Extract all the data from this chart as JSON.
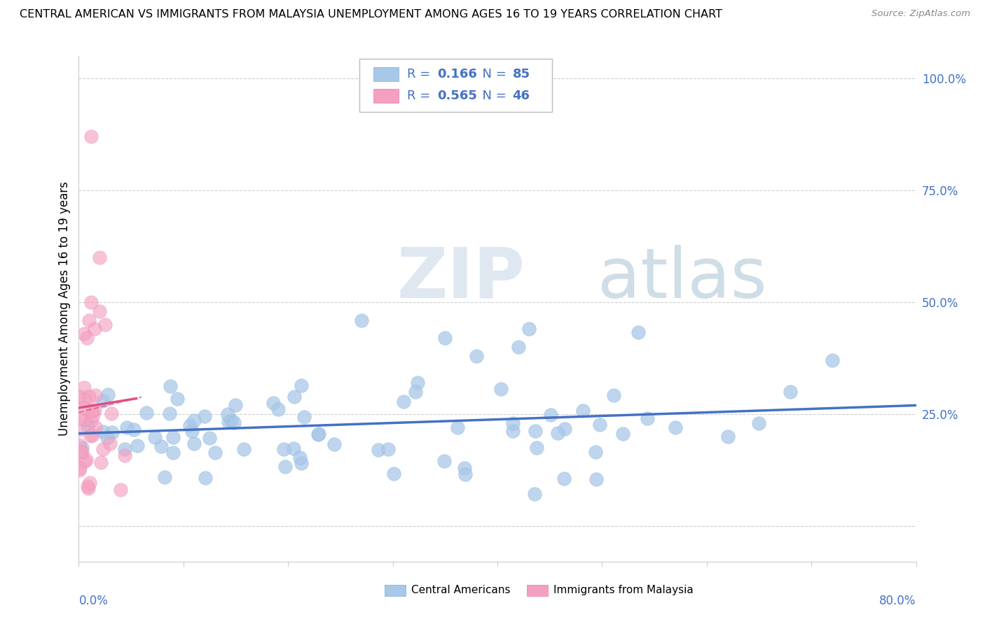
{
  "title": "CENTRAL AMERICAN VS IMMIGRANTS FROM MALAYSIA UNEMPLOYMENT AMONG AGES 16 TO 19 YEARS CORRELATION CHART",
  "source": "Source: ZipAtlas.com",
  "ylabel": "Unemployment Among Ages 16 to 19 years",
  "xmin": 0.0,
  "xmax": 0.8,
  "ymin": -0.08,
  "ymax": 1.05,
  "ytick_values": [
    0.0,
    0.25,
    0.5,
    0.75,
    1.0
  ],
  "ytick_labels": [
    "",
    "25.0%",
    "50.0%",
    "75.0%",
    "100.0%"
  ],
  "blue_color": "#a8c8e8",
  "blue_edge_color": "#7aaddb",
  "pink_color": "#f4a0c0",
  "pink_edge_color": "#e87aaa",
  "blue_line_color": "#4472c4",
  "pink_line_color": "#e05080",
  "legend_text_color": "#4472c4",
  "watermark_zip_color": "#c8d8e8",
  "watermark_atlas_color": "#a0b8d0",
  "blue_N": 85,
  "pink_N": 46,
  "blue_R": 0.166,
  "pink_R": 0.565,
  "blue_seed": 42,
  "pink_seed": 17,
  "tick_color": "#4472c4"
}
